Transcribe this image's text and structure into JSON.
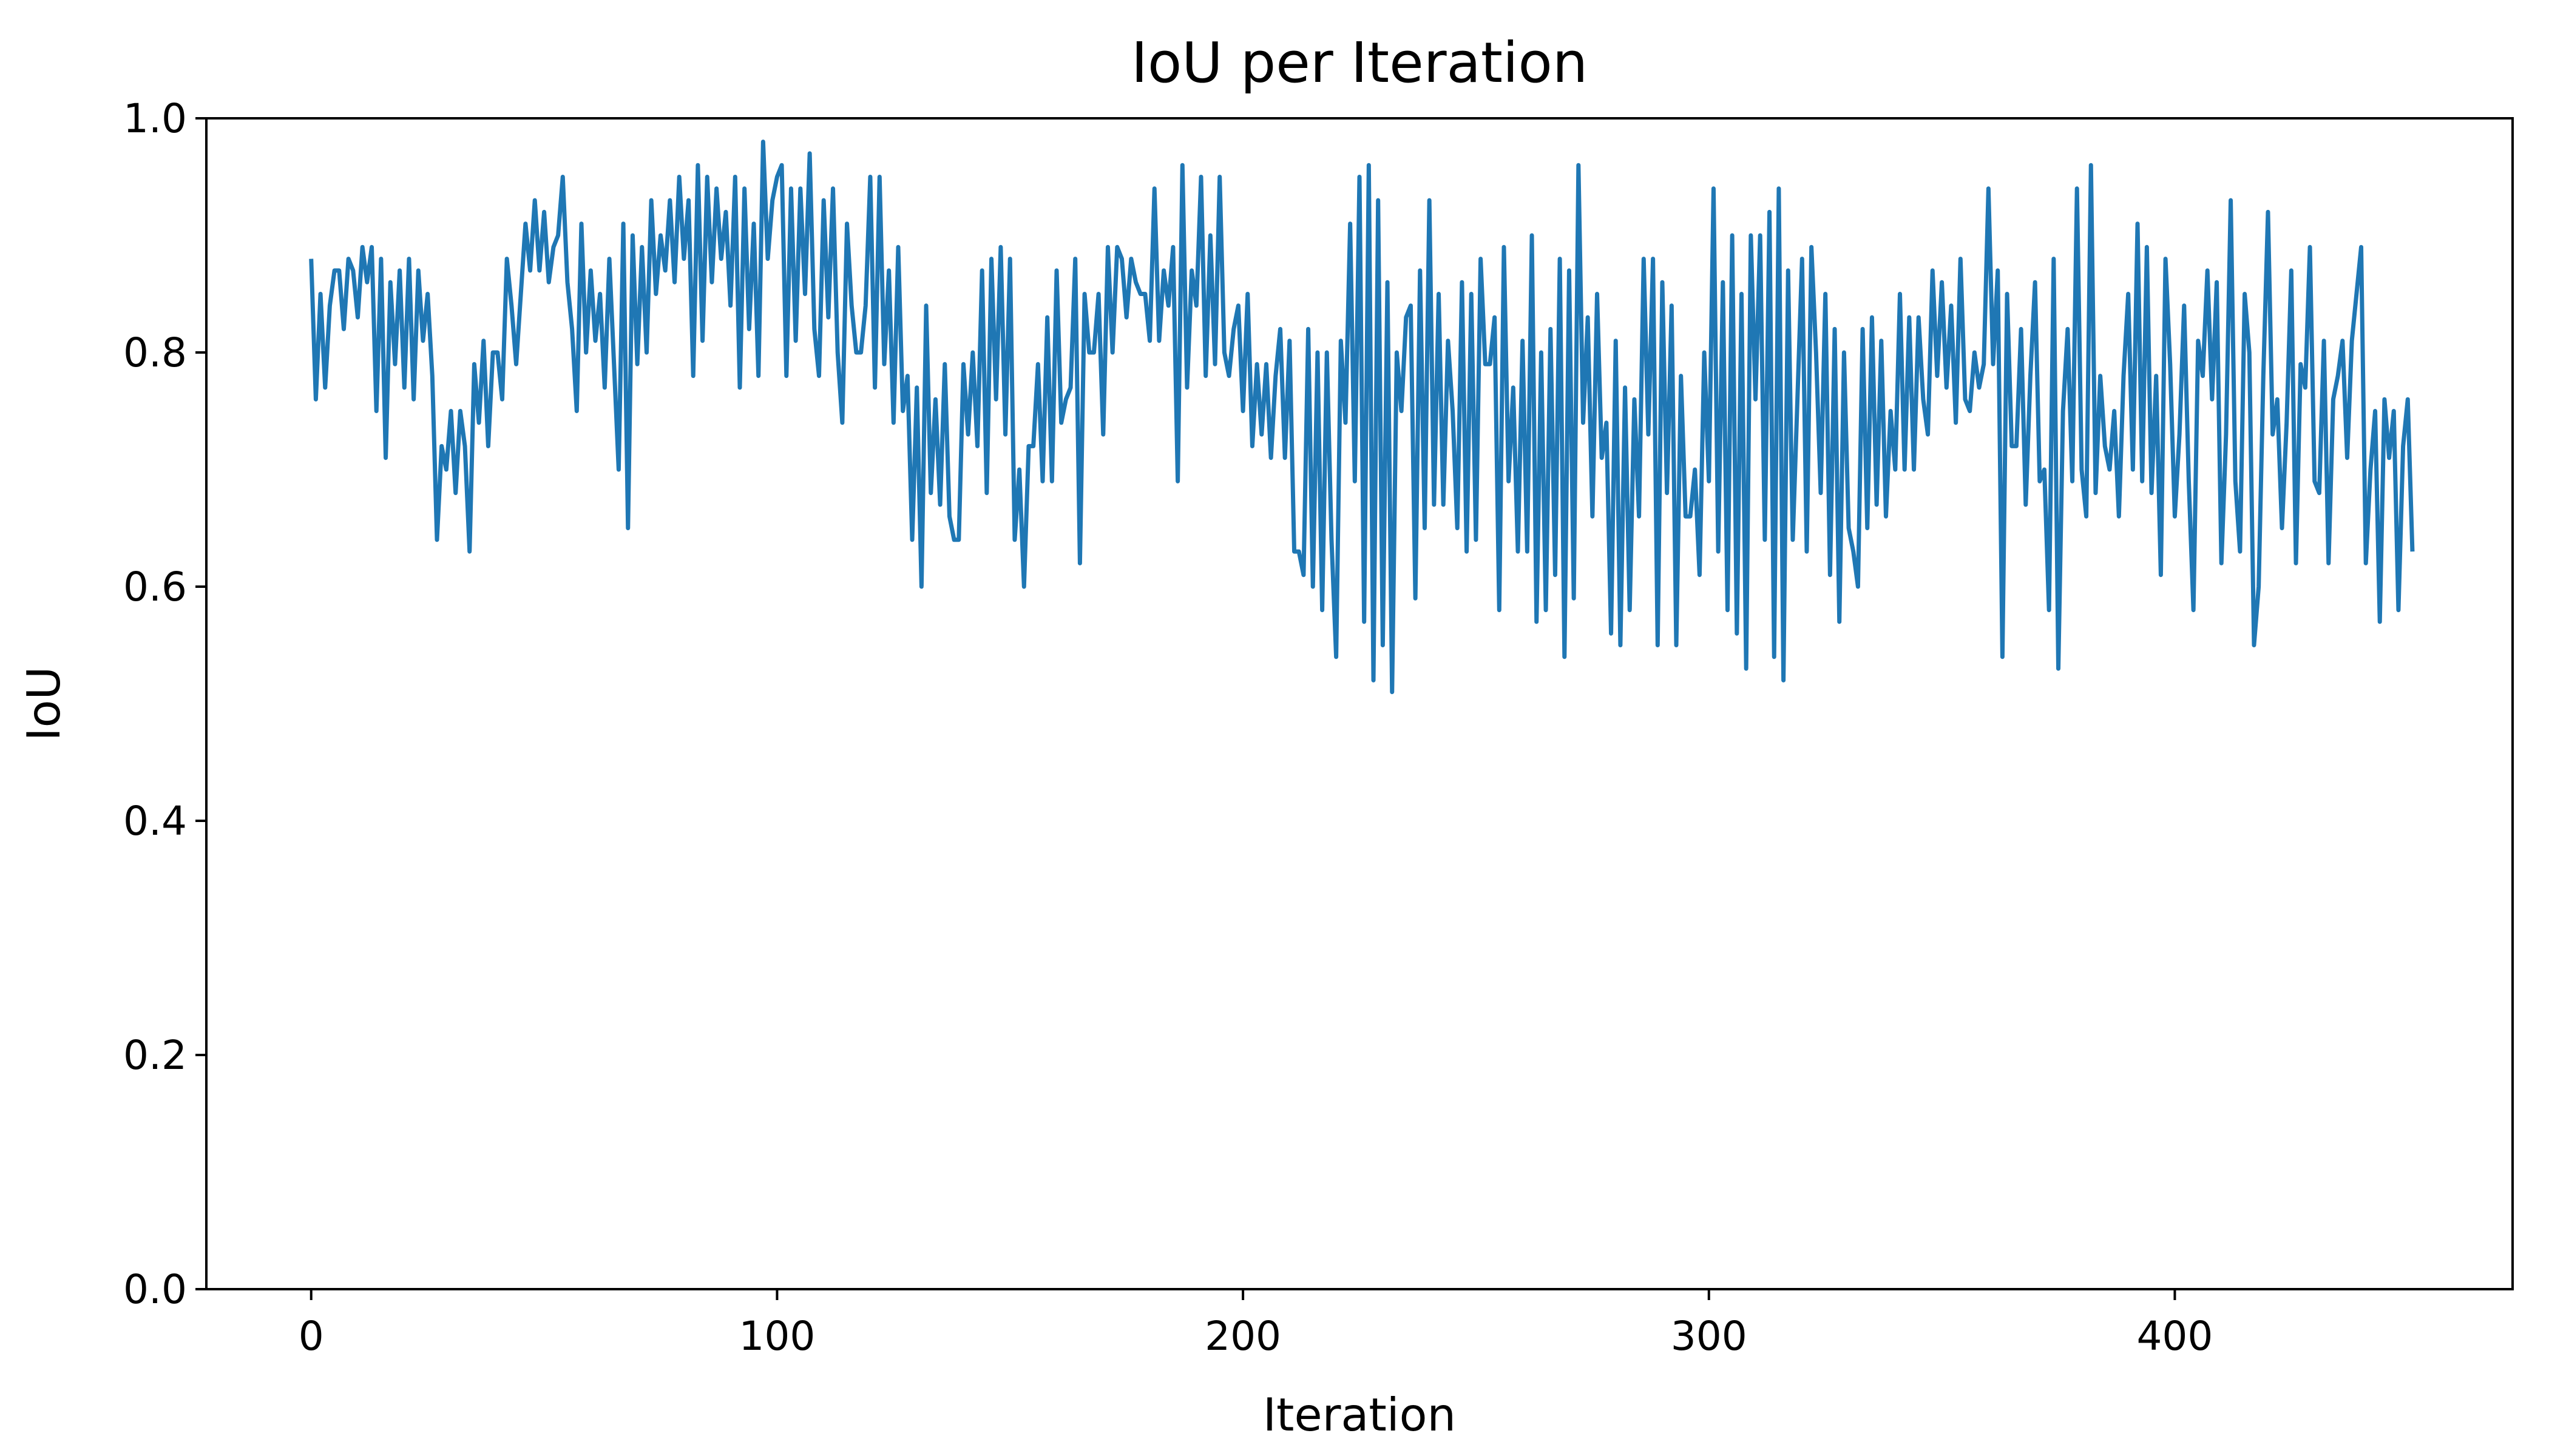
{
  "chart_data": {
    "type": "line",
    "title": "IoU per Iteration",
    "xlabel": "Iteration",
    "ylabel": "IoU",
    "xlim": [
      -22.5,
      472.5
    ],
    "ylim": [
      0.0,
      1.0
    ],
    "xticks": [
      0,
      100,
      200,
      300,
      400
    ],
    "xtick_labels": [
      "0",
      "100",
      "200",
      "300",
      "400"
    ],
    "yticks": [
      0.0,
      0.2,
      0.4,
      0.6,
      0.8,
      1.0
    ],
    "ytick_labels": [
      "0.0",
      "0.2",
      "0.4",
      "0.6",
      "0.8",
      "1.0"
    ],
    "grid": false,
    "line_color": "#1f77b4",
    "series": [
      {
        "name": "IoU",
        "x_start": 0,
        "x_step": 1,
        "values": [
          0.88,
          0.76,
          0.85,
          0.77,
          0.84,
          0.87,
          0.87,
          0.82,
          0.88,
          0.87,
          0.83,
          0.89,
          0.86,
          0.89,
          0.75,
          0.88,
          0.71,
          0.86,
          0.79,
          0.87,
          0.77,
          0.88,
          0.76,
          0.87,
          0.81,
          0.85,
          0.78,
          0.64,
          0.72,
          0.7,
          0.75,
          0.68,
          0.75,
          0.72,
          0.63,
          0.79,
          0.74,
          0.81,
          0.72,
          0.8,
          0.8,
          0.76,
          0.88,
          0.84,
          0.79,
          0.85,
          0.91,
          0.87,
          0.93,
          0.87,
          0.92,
          0.86,
          0.89,
          0.9,
          0.95,
          0.86,
          0.82,
          0.75,
          0.91,
          0.8,
          0.87,
          0.81,
          0.85,
          0.77,
          0.88,
          0.79,
          0.7,
          0.91,
          0.65,
          0.9,
          0.79,
          0.89,
          0.8,
          0.93,
          0.85,
          0.9,
          0.87,
          0.93,
          0.86,
          0.95,
          0.88,
          0.93,
          0.78,
          0.96,
          0.81,
          0.95,
          0.86,
          0.94,
          0.88,
          0.92,
          0.84,
          0.95,
          0.77,
          0.94,
          0.82,
          0.91,
          0.78,
          0.98,
          0.88,
          0.93,
          0.95,
          0.96,
          0.78,
          0.94,
          0.81,
          0.94,
          0.85,
          0.97,
          0.82,
          0.78,
          0.93,
          0.83,
          0.94,
          0.8,
          0.74,
          0.91,
          0.84,
          0.8,
          0.8,
          0.84,
          0.95,
          0.77,
          0.95,
          0.79,
          0.87,
          0.74,
          0.89,
          0.75,
          0.78,
          0.64,
          0.77,
          0.6,
          0.84,
          0.68,
          0.76,
          0.67,
          0.79,
          0.66,
          0.64,
          0.64,
          0.79,
          0.73,
          0.8,
          0.72,
          0.87,
          0.68,
          0.88,
          0.76,
          0.89,
          0.73,
          0.88,
          0.64,
          0.7,
          0.6,
          0.72,
          0.72,
          0.79,
          0.69,
          0.83,
          0.69,
          0.87,
          0.74,
          0.76,
          0.77,
          0.88,
          0.62,
          0.85,
          0.8,
          0.8,
          0.85,
          0.73,
          0.89,
          0.8,
          0.89,
          0.88,
          0.83,
          0.88,
          0.86,
          0.85,
          0.85,
          0.81,
          0.94,
          0.81,
          0.87,
          0.84,
          0.89,
          0.69,
          0.96,
          0.77,
          0.87,
          0.84,
          0.95,
          0.78,
          0.9,
          0.79,
          0.95,
          0.8,
          0.78,
          0.82,
          0.84,
          0.75,
          0.85,
          0.72,
          0.79,
          0.73,
          0.79,
          0.71,
          0.78,
          0.82,
          0.71,
          0.81,
          0.63,
          0.63,
          0.61,
          0.82,
          0.6,
          0.8,
          0.58,
          0.8,
          0.64,
          0.54,
          0.81,
          0.74,
          0.91,
          0.69,
          0.95,
          0.57,
          0.96,
          0.52,
          0.93,
          0.55,
          0.86,
          0.51,
          0.8,
          0.75,
          0.83,
          0.84,
          0.59,
          0.87,
          0.65,
          0.93,
          0.67,
          0.85,
          0.67,
          0.81,
          0.75,
          0.65,
          0.86,
          0.63,
          0.85,
          0.64,
          0.88,
          0.79,
          0.79,
          0.83,
          0.58,
          0.89,
          0.69,
          0.77,
          0.63,
          0.81,
          0.63,
          0.9,
          0.57,
          0.8,
          0.58,
          0.82,
          0.61,
          0.88,
          0.54,
          0.87,
          0.59,
          0.96,
          0.74,
          0.83,
          0.66,
          0.85,
          0.71,
          0.74,
          0.56,
          0.81,
          0.55,
          0.77,
          0.58,
          0.76,
          0.66,
          0.88,
          0.73,
          0.88,
          0.55,
          0.86,
          0.68,
          0.84,
          0.55,
          0.78,
          0.66,
          0.66,
          0.7,
          0.61,
          0.8,
          0.69,
          0.94,
          0.63,
          0.86,
          0.58,
          0.9,
          0.56,
          0.85,
          0.53,
          0.9,
          0.76,
          0.9,
          0.64,
          0.92,
          0.54,
          0.94,
          0.52,
          0.87,
          0.64,
          0.76,
          0.88,
          0.63,
          0.89,
          0.8,
          0.68,
          0.85,
          0.61,
          0.82,
          0.57,
          0.8,
          0.65,
          0.63,
          0.6,
          0.82,
          0.65,
          0.83,
          0.67,
          0.81,
          0.66,
          0.75,
          0.7,
          0.85,
          0.7,
          0.83,
          0.7,
          0.83,
          0.76,
          0.73,
          0.87,
          0.78,
          0.86,
          0.77,
          0.84,
          0.74,
          0.88,
          0.76,
          0.75,
          0.8,
          0.77,
          0.79,
          0.94,
          0.79,
          0.87,
          0.54,
          0.85,
          0.72,
          0.72,
          0.82,
          0.67,
          0.78,
          0.86,
          0.69,
          0.7,
          0.58,
          0.88,
          0.53,
          0.75,
          0.82,
          0.69,
          0.94,
          0.7,
          0.66,
          0.96,
          0.68,
          0.78,
          0.72,
          0.7,
          0.75,
          0.66,
          0.78,
          0.85,
          0.7,
          0.91,
          0.69,
          0.89,
          0.68,
          0.78,
          0.61,
          0.88,
          0.79,
          0.66,
          0.73,
          0.84,
          0.69,
          0.58,
          0.81,
          0.78,
          0.87,
          0.76,
          0.86,
          0.62,
          0.73,
          0.93,
          0.69,
          0.63,
          0.85,
          0.8,
          0.55,
          0.6,
          0.78,
          0.92,
          0.73,
          0.76,
          0.65,
          0.74,
          0.87,
          0.62,
          0.79,
          0.77,
          0.89,
          0.69,
          0.68,
          0.81,
          0.62,
          0.76,
          0.78,
          0.81,
          0.71,
          0.81,
          0.85,
          0.89,
          0.62,
          0.7,
          0.75,
          0.57,
          0.76,
          0.71,
          0.75,
          0.58,
          0.72,
          0.76,
          0.63
        ]
      }
    ]
  }
}
